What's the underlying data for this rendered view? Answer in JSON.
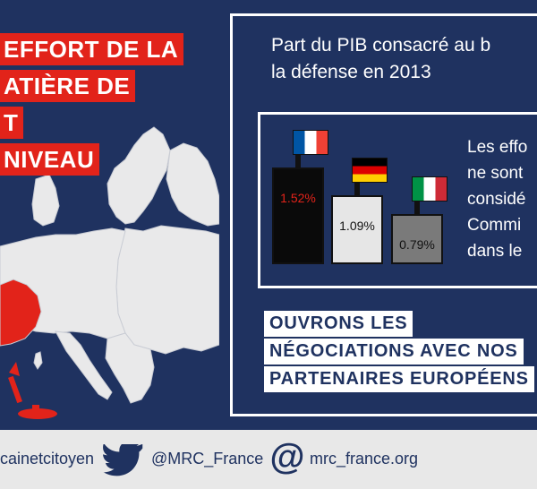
{
  "headline": {
    "lines": [
      "EFFORT DE LA",
      "ATIÈRE DE",
      "T",
      "NIVEAU"
    ]
  },
  "panel": {
    "title": "Part du PIB consacré au b\nla défense en 2013",
    "side_text": "Les effo\nne sont\nconsidé\nCommi\ndans le",
    "cta_lines": [
      "OUVRONS LES",
      "NÉGOCIATIONS AVEC NOS",
      "PARTENAIRES EUROPÉENS"
    ]
  },
  "chart_data": {
    "type": "bar",
    "categories": [
      "France",
      "Allemagne",
      "Italie"
    ],
    "values": [
      1.52,
      1.09,
      0.79
    ],
    "labels": [
      "1.52%",
      "1.09%",
      "0.79%"
    ],
    "colors": [
      "#0a0a0a",
      "#e6e6e6",
      "#7a7a7a"
    ],
    "label_colors": [
      "#e2231a",
      "#111111",
      "#111111"
    ],
    "title": "",
    "xlabel": "",
    "ylabel": "",
    "ylim": [
      0,
      1.52
    ]
  },
  "footer": {
    "hashtag": "cainetcitoyen",
    "twitter": "@MRC_France",
    "website": "mrc_france.org"
  },
  "icons": [
    "twitter-bird-icon",
    "at-sign-icon",
    "missile-icon",
    "submarine-icon"
  ],
  "colors": {
    "background": "#1f3260",
    "accent_red": "#e2231a",
    "map_land": "#e9e9ea",
    "footer_bg": "#e8e8e8"
  }
}
